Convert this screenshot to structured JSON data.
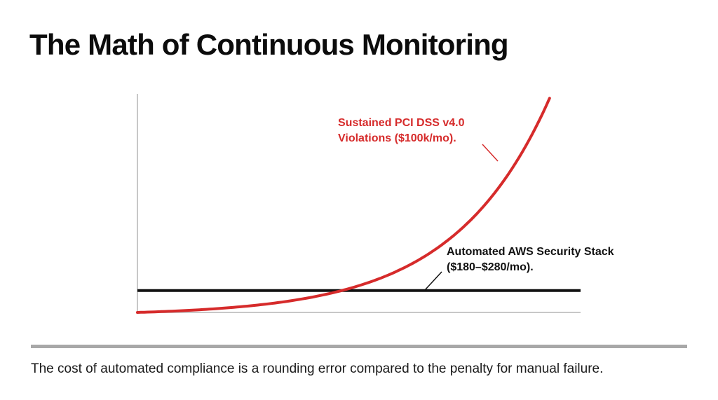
{
  "slide": {
    "title": "The Math of Continuous Monitoring",
    "caption": "The cost of automated compliance is a rounding error compared to the penalty for manual failure."
  },
  "colors": {
    "violation_curve": "#d62b2b",
    "security_stack_line": "#111111",
    "axis": "#c8c8c8",
    "divider": "#a8a8a8"
  },
  "chart_data": {
    "type": "line",
    "title": "",
    "xlabel": "",
    "ylabel": "",
    "x_ticks": [],
    "y_ticks": [],
    "xlim": [
      0,
      1
    ],
    "ylim": [
      0,
      1
    ],
    "grid": false,
    "series": [
      {
        "name": "Sustained PCI DSS v4.0 Violations ($100k/mo).",
        "label_lines": [
          "Sustained PCI DSS v4.0",
          "Violations ($100k/mo)."
        ],
        "color": "#d62b2b",
        "shape": "exponential",
        "x": [
          0,
          0.1,
          0.2,
          0.3,
          0.4,
          0.5,
          0.6,
          0.7,
          0.8,
          0.9,
          1.0
        ],
        "y": [
          0,
          0.02,
          0.04,
          0.08,
          0.12,
          0.18,
          0.26,
          0.36,
          0.5,
          0.69,
          0.98
        ]
      },
      {
        "name": "Automated AWS Security Stack ($180–$280/mo).",
        "label_lines": [
          "Automated AWS Security Stack",
          "($180–$280/mo)."
        ],
        "color": "#111111",
        "shape": "flat",
        "x": [
          0,
          1.0
        ],
        "y": [
          0.1,
          0.1
        ]
      }
    ]
  }
}
